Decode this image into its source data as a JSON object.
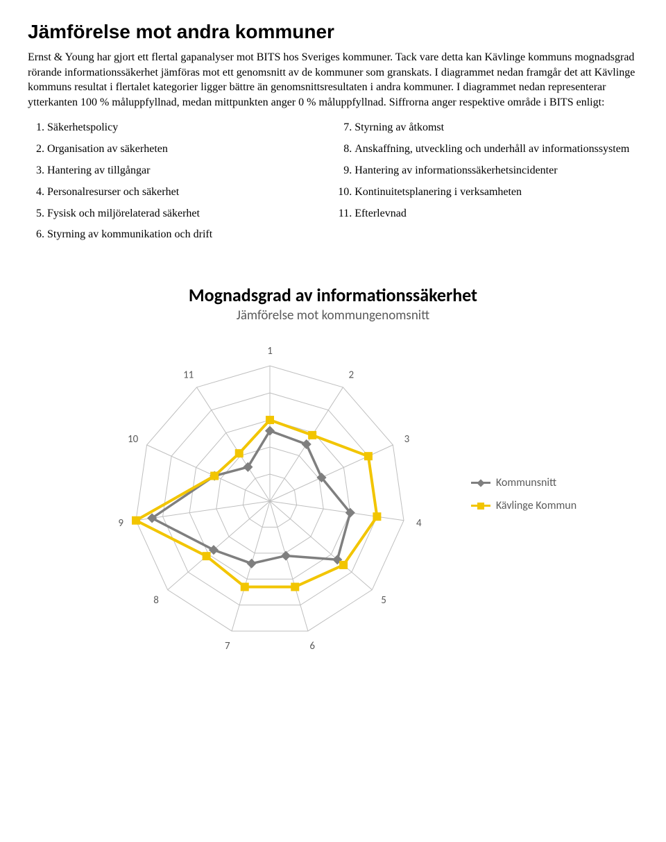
{
  "heading": "Jämförelse mot andra kommuner",
  "paragraph": "Ernst & Young har gjort ett flertal gapanalyser mot BITS hos Sveriges kommuner. Tack vare detta kan Kävlinge kommuns mognadsgrad rörande informationssäkerhet jämföras mot ett genomsnitt av de kommuner som granskats. I diagrammet nedan framgår det att Kävlinge kommuns resultat i flertalet kategorier ligger bättre än genomsnittsresultaten i andra kommuner. I diagrammet nedan representerar ytterkanten 100 % måluppfyllnad, medan mittpunkten anger 0 % måluppfyllnad. Siffrorna anger respektive område i BITS enligt:",
  "list_col1": [
    "Säkerhetspolicy",
    "Organisation av säkerheten",
    "Hantering av tillgångar",
    "Personalresurser och säkerhet",
    "Fysisk och miljörelaterad säkerhet",
    "Styrning av kommunikation och drift"
  ],
  "list_col2": [
    "Styrning av åtkomst",
    "Anskaffning, utveckling och underhåll av informationssystem",
    "Hantering av informationssäkerhetsincidenter",
    "Kontinuitetsplanering i verksamheten",
    "Efterlevnad"
  ],
  "chart": {
    "type": "radar",
    "title": "Mognadsgrad av informationssäkerhet",
    "subtitle": "Jämförelse mot kommungenomsnitt",
    "title_fontsize": 26,
    "subtitle_fontsize": 19,
    "axis_labels": [
      "1",
      "2",
      "3",
      "4",
      "5",
      "6",
      "7",
      "8",
      "9",
      "10",
      "11"
    ],
    "rings": 5,
    "rlim": [
      0,
      100
    ],
    "background_color": "#ffffff",
    "grid_color": "#bfbfbf",
    "label_color": "#5a5a5a",
    "label_fontsize": 15,
    "series": [
      {
        "name": "Kommunsnitt",
        "color": "#7f7f7f",
        "marker": "diamond",
        "line_width": 3.5,
        "values": [
          52,
          50,
          42,
          60,
          66,
          42,
          48,
          55,
          88,
          45,
          30
        ]
      },
      {
        "name": "Kävlinge Kommun",
        "color": "#f2c500",
        "marker": "square",
        "line_width": 4,
        "values": [
          60,
          58,
          80,
          80,
          72,
          66,
          66,
          62,
          100,
          45,
          42
        ]
      }
    ],
    "legend_position": "right"
  }
}
